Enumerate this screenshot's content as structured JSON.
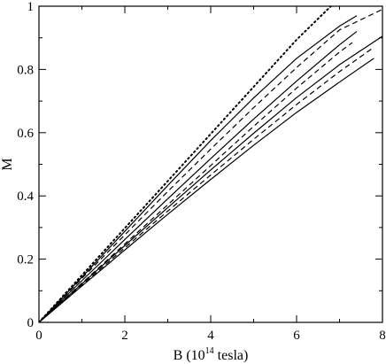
{
  "chart_data": {
    "type": "line",
    "title": "",
    "xlabel_prefix": "B (10",
    "xlabel_exponent": "14",
    "xlabel_suffix": " tesla)",
    "ylabel": "M",
    "xlim": [
      0,
      8
    ],
    "ylim": [
      0,
      1
    ],
    "x_ticks": [
      0,
      2,
      4,
      6,
      8
    ],
    "y_ticks": [
      0,
      0.2,
      0.4,
      0.6,
      0.8,
      1
    ],
    "x_tick_labels": [
      "0",
      "2",
      "4",
      "6",
      "8"
    ],
    "y_tick_labels": [
      "0",
      "0.2",
      "0.4",
      "0.6",
      "0.8",
      "1"
    ],
    "grid": false,
    "legend": "none",
    "series": [
      {
        "style": "dotted",
        "x": [
          0,
          1,
          2,
          3,
          4,
          5,
          6,
          6.8
        ],
        "y": [
          0,
          0.149,
          0.298,
          0.447,
          0.596,
          0.745,
          0.894,
          1.0
        ]
      },
      {
        "style": "solid",
        "x": [
          0,
          1,
          2,
          3,
          4,
          5,
          6,
          7,
          7.4
        ],
        "y": [
          0,
          0.143,
          0.288,
          0.433,
          0.575,
          0.71,
          0.835,
          0.937,
          0.97
        ]
      },
      {
        "style": "dashed",
        "x": [
          0,
          1,
          2,
          3,
          4,
          5,
          6,
          7,
          8
        ],
        "y": [
          0,
          0.139,
          0.277,
          0.414,
          0.548,
          0.679,
          0.806,
          0.925,
          0.99
        ]
      },
      {
        "style": "solid",
        "x": [
          0,
          1,
          2,
          3,
          4,
          5,
          6,
          7,
          7.4
        ],
        "y": [
          0,
          0.132,
          0.262,
          0.391,
          0.518,
          0.643,
          0.763,
          0.878,
          0.92
        ]
      },
      {
        "style": "dashed",
        "x": [
          0,
          1,
          2,
          3,
          4,
          5,
          6,
          7,
          7.3
        ],
        "y": [
          0,
          0.124,
          0.248,
          0.372,
          0.496,
          0.62,
          0.741,
          0.855,
          0.885
        ]
      },
      {
        "style": "solid",
        "x": [
          0,
          1,
          2,
          3,
          4,
          5,
          6,
          7,
          8
        ],
        "y": [
          0,
          0.122,
          0.243,
          0.363,
          0.482,
          0.598,
          0.711,
          0.815,
          0.905
        ]
      },
      {
        "style": "dashed",
        "x": [
          0,
          1,
          2,
          3,
          4,
          5,
          6,
          7,
          7.8
        ],
        "y": [
          0,
          0.118,
          0.236,
          0.352,
          0.466,
          0.579,
          0.689,
          0.793,
          0.87
        ]
      },
      {
        "style": "solid",
        "x": [
          0,
          1,
          2,
          3,
          4,
          5,
          6,
          7,
          7.8
        ],
        "y": [
          0,
          0.115,
          0.229,
          0.342,
          0.452,
          0.56,
          0.664,
          0.76,
          0.835
        ]
      }
    ]
  }
}
